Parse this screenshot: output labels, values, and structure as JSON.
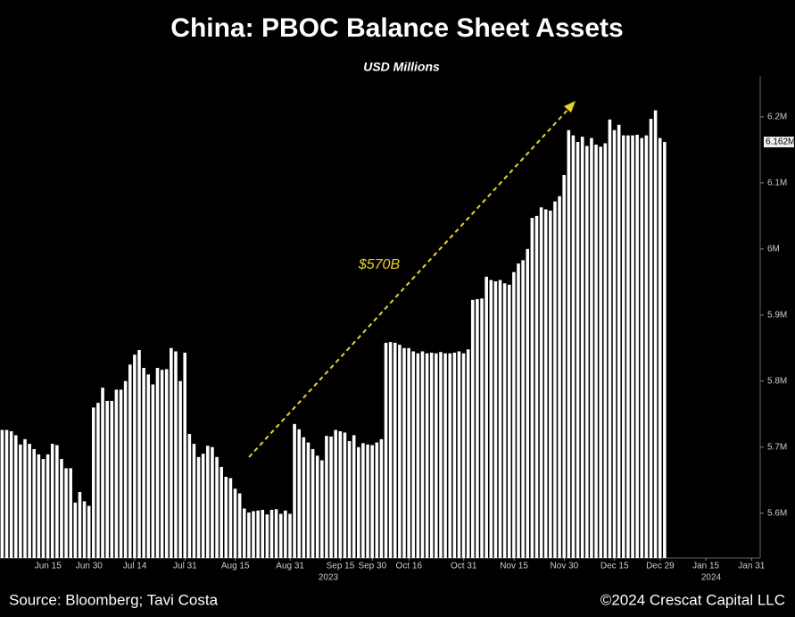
{
  "chart_data": {
    "type": "bar",
    "title": "China: PBOC Balance Sheet Assets",
    "subtitle": "USD Millions",
    "annotation": "$570B",
    "source": "Source: Bloomberg; Tavi Costa",
    "copyright": "©2024 Crescat Capital LLC",
    "color": "#ffffff",
    "last_value": {
      "value": 6162000,
      "label": "6.162M"
    },
    "year_labels": [
      "2023",
      "2024"
    ],
    "categories": [
      null,
      null,
      null,
      null,
      null,
      null,
      null,
      null,
      null,
      null,
      "Jun 15",
      null,
      null,
      null,
      null,
      null,
      null,
      null,
      null,
      "Jun 30",
      null,
      null,
      null,
      null,
      null,
      null,
      null,
      null,
      null,
      "Jul 14",
      null,
      null,
      null,
      null,
      null,
      null,
      null,
      null,
      null,
      null,
      "Jul 31",
      null,
      null,
      null,
      null,
      null,
      null,
      null,
      null,
      null,
      null,
      "Aug 15",
      null,
      null,
      null,
      null,
      null,
      null,
      null,
      null,
      null,
      null,
      null,
      "Aug 31",
      null,
      null,
      null,
      null,
      null,
      null,
      null,
      null,
      null,
      null,
      "Sep 15",
      null,
      null,
      null,
      null,
      null,
      null,
      "Sep 30",
      null,
      null,
      null,
      null,
      null,
      null,
      null,
      "Oct 16",
      null,
      null,
      null,
      null,
      null,
      null,
      null,
      null,
      null,
      null,
      null,
      "Oct 31",
      null,
      null,
      null,
      null,
      null,
      null,
      null,
      null,
      null,
      null,
      "Nov 15",
      null,
      null,
      null,
      null,
      null,
      null,
      null,
      null,
      null,
      null,
      "Nov 30",
      null,
      null,
      null,
      null,
      null,
      null,
      null,
      null,
      null,
      null,
      "Dec 15",
      null,
      null,
      null,
      null,
      null,
      null,
      null,
      null,
      null,
      "Dec 29",
      null,
      null,
      null,
      null,
      null,
      null,
      null,
      null,
      null,
      "Jan 15",
      null,
      null,
      null,
      null,
      null,
      null,
      null,
      null,
      null,
      "Jan 31",
      null
    ],
    "values": [
      5726000,
      5726000,
      5724000,
      5718000,
      5704000,
      5712000,
      5705000,
      5697000,
      5689000,
      5682000,
      5689000,
      5705000,
      5703000,
      5682000,
      5668000,
      5668000,
      5616000,
      5632000,
      5618000,
      5611000,
      5760000,
      5767000,
      5790000,
      5770000,
      5770000,
      5787000,
      5787000,
      5800000,
      5825000,
      5840000,
      5847000,
      5820000,
      5810000,
      5795000,
      5820000,
      5817000,
      5818000,
      5850000,
      5845000,
      5800000,
      5843000,
      5720000,
      5705000,
      5685000,
      5690000,
      5702000,
      5700000,
      5685000,
      5670000,
      5655000,
      5653000,
      5637000,
      5630000,
      5607000,
      5601000,
      5603000,
      5604000,
      5605000,
      5598000,
      5605000,
      5606000,
      5599000,
      5604000,
      5599000,
      5735000,
      5727000,
      5715000,
      5707000,
      5697000,
      5687000,
      5680000,
      5717000,
      5716000,
      5726000,
      5724000,
      5722000,
      5709000,
      5718000,
      5700000,
      5706000,
      5704000,
      5703000,
      5707000,
      5712000,
      5858000,
      5859000,
      5858000,
      5855000,
      5850000,
      5850000,
      5845000,
      5842000,
      5845000,
      5842000,
      5843000,
      5842000,
      5844000,
      5842000,
      5842000,
      5843000,
      5845000,
      5842000,
      5848000,
      5923000,
      5924000,
      5925000,
      5958000,
      5953000,
      5951000,
      5953000,
      5948000,
      5946000,
      5965000,
      5978000,
      5983000,
      6000000,
      6047000,
      6050000,
      6063000,
      6060000,
      6058000,
      6072000,
      6080000,
      6112000,
      6180000,
      6172000,
      6162000,
      6170000,
      6156000,
      6168000,
      6158000,
      6155000,
      6160000,
      6196000,
      6180000,
      6188000,
      6172000,
      6172000,
      6172000,
      6173000,
      6168000,
      6172000,
      6197000,
      6210000,
      6168000,
      6162000,
      null,
      null,
      null,
      null,
      null,
      null,
      null,
      null,
      null,
      null,
      null,
      null,
      null,
      null,
      null,
      null,
      null,
      null,
      null,
      null
    ],
    "ylim": [
      5532000,
      6261000
    ],
    "yticks": [
      {
        "value": 5600000,
        "label": "5.6M"
      },
      {
        "value": 5700000,
        "label": "5.7M"
      },
      {
        "value": 5800000,
        "label": "5.8M"
      },
      {
        "value": 5900000,
        "label": "5.9M"
      },
      {
        "value": 6000000,
        "label": "6M"
      },
      {
        "value": 6100000,
        "label": "6.1M"
      },
      {
        "value": 6200000,
        "label": "6.2M"
      }
    ],
    "grid": false
  }
}
